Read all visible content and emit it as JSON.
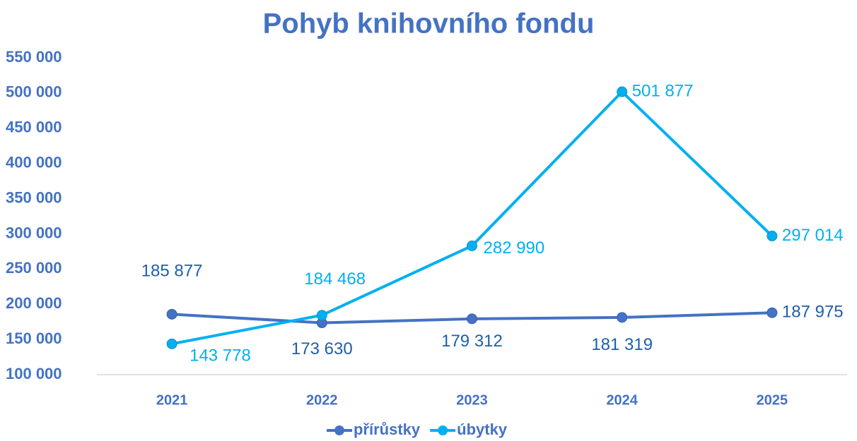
{
  "chart_data": {
    "type": "line",
    "title": "Pohyb knihovního fondu",
    "categories": [
      "2021",
      "2022",
      "2023",
      "2024",
      "2025"
    ],
    "series": [
      {
        "name": "přírůstky",
        "color": "#4472c4",
        "values": [
          185877,
          173630,
          179312,
          181319,
          187975
        ],
        "value_labels": [
          "185 877",
          "173 630",
          "179 312",
          "181 319",
          "187 975"
        ]
      },
      {
        "name": "úbytky",
        "color": "#00b0f0",
        "values": [
          143778,
          184468,
          282990,
          501877,
          297014
        ],
        "value_labels": [
          "143 778",
          "184 468",
          "282 990",
          "501 877",
          "297 014"
        ]
      }
    ],
    "ylim": [
      100000,
      550000
    ],
    "yticks": [
      {
        "value": 100000,
        "label": "100 000"
      },
      {
        "value": 150000,
        "label": "150 000"
      },
      {
        "value": 200000,
        "label": "200 000"
      },
      {
        "value": 250000,
        "label": "250 000"
      },
      {
        "value": 300000,
        "label": "300 000"
      },
      {
        "value": 350000,
        "label": "350 000"
      },
      {
        "value": 400000,
        "label": "400 000"
      },
      {
        "value": 450000,
        "label": "450 000"
      },
      {
        "value": 500000,
        "label": "500 000"
      },
      {
        "value": 550000,
        "label": "550 000"
      }
    ],
    "grid": false,
    "legend": "bottom"
  }
}
